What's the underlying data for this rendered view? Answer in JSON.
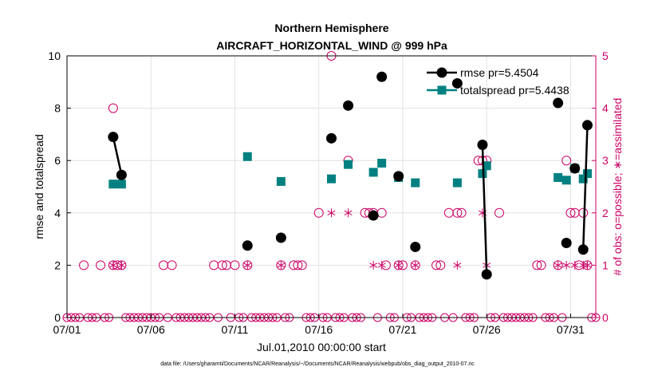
{
  "chart_data": {
    "type": "line",
    "title": "Northern Hemisphere",
    "subtitle": "AIRCRAFT_HORIZONTAL_WIND @ 999 hPa",
    "xlabel": "Jul.01,2010 00:00:00 start",
    "ylabel": "rmse and totalspread",
    "y2label": "# of obs: o=possible; ∗=assimilated",
    "footer": "data file: /Users/gharamti/Documents/NCAR/Reanalysis/~/Documents/NCAR/Reanalysis/webpub/obs_diag_output_2010-07.nc",
    "xlim": [
      0,
      31.5
    ],
    "ylim": [
      0,
      10
    ],
    "y2lim": [
      0,
      5
    ],
    "x_ticks": [
      0,
      5,
      10,
      15,
      20,
      25,
      30
    ],
    "x_tick_labels": [
      "07/01",
      "07/06",
      "07/11",
      "07/16",
      "07/21",
      "07/26",
      "07/31"
    ],
    "y_ticks": [
      0,
      2,
      4,
      6,
      8,
      10
    ],
    "y_tick_labels": [
      "0",
      "2",
      "4",
      "6",
      "8",
      "10"
    ],
    "y2_ticks": [
      0,
      1,
      2,
      3,
      4,
      5
    ],
    "y2_tick_labels": [
      "0",
      "1",
      "2",
      "3",
      "4",
      "5"
    ],
    "legend_position": "top-right",
    "colors": {
      "rmse": "#000000",
      "totalspread": "#008080",
      "obs": "#cc0066",
      "grid": "#dcdcdc"
    },
    "series": [
      {
        "name": "rmse",
        "legend": "rmse pr=5.4504",
        "segments": [
          [
            2.75,
            3.25
          ]
        ],
        "points": [
          [
            2.75,
            6.9
          ],
          [
            3.25,
            5.45
          ],
          [
            10.75,
            2.75
          ],
          [
            12.75,
            3.05
          ],
          [
            15.75,
            6.85
          ],
          [
            16.75,
            8.1
          ],
          [
            18.25,
            3.9
          ],
          [
            18.75,
            9.2
          ],
          [
            19.75,
            5.4
          ],
          [
            20.75,
            2.7
          ],
          [
            23.25,
            8.95
          ],
          [
            24.75,
            6.6
          ],
          [
            25.0,
            1.65
          ],
          [
            29.25,
            8.2
          ],
          [
            29.75,
            2.85
          ],
          [
            30.25,
            5.7
          ],
          [
            30.75,
            2.6
          ],
          [
            31.0,
            7.35
          ]
        ],
        "links": [
          [
            [
              24.75,
              6.6
            ],
            [
              25.0,
              1.65
            ]
          ],
          [
            [
              30.75,
              2.6
            ],
            [
              31.0,
              7.35
            ]
          ],
          [
            [
              18.25,
              3.9
            ],
            [
              18.25,
              3.9
            ]
          ]
        ]
      },
      {
        "name": "totalspread",
        "legend": "totalspread pr=5.4438",
        "points": [
          [
            2.75,
            5.1
          ],
          [
            3.25,
            5.1
          ],
          [
            10.75,
            6.15
          ],
          [
            12.75,
            5.2
          ],
          [
            15.75,
            5.3
          ],
          [
            16.75,
            5.85
          ],
          [
            18.25,
            5.55
          ],
          [
            18.75,
            5.9
          ],
          [
            19.75,
            5.35
          ],
          [
            20.75,
            5.15
          ],
          [
            23.25,
            5.15
          ],
          [
            24.75,
            5.5
          ],
          [
            25.0,
            5.8
          ],
          [
            29.25,
            5.35
          ],
          [
            29.75,
            5.25
          ],
          [
            30.25,
            5.7
          ],
          [
            30.75,
            5.3
          ],
          [
            31.0,
            5.5
          ]
        ],
        "links": [
          [
            [
              24.75,
              5.5
            ],
            [
              25.0,
              5.8
            ]
          ],
          [
            [
              30.75,
              5.3
            ],
            [
              31.0,
              5.5
            ]
          ]
        ]
      },
      {
        "name": "possible obs",
        "axis": "right",
        "points": [
          [
            1.0,
            1
          ],
          [
            2.0,
            1
          ],
          [
            2.75,
            4
          ],
          [
            2.75,
            1
          ],
          [
            3.0,
            1
          ],
          [
            3.25,
            1
          ],
          [
            5.75,
            1
          ],
          [
            6.25,
            1
          ],
          [
            8.75,
            1
          ],
          [
            9.25,
            1
          ],
          [
            9.5,
            1
          ],
          [
            10.0,
            1
          ],
          [
            10.75,
            1
          ],
          [
            12.75,
            1
          ],
          [
            13.5,
            1
          ],
          [
            13.75,
            1
          ],
          [
            14.0,
            1
          ],
          [
            15.0,
            2
          ],
          [
            15.75,
            5
          ],
          [
            16.75,
            3
          ],
          [
            17.75,
            2
          ],
          [
            18.0,
            2
          ],
          [
            18.25,
            2
          ],
          [
            18.75,
            2
          ],
          [
            19.0,
            1
          ],
          [
            19.75,
            1
          ],
          [
            20.0,
            1
          ],
          [
            20.75,
            1
          ],
          [
            22.0,
            1
          ],
          [
            22.25,
            1
          ],
          [
            22.75,
            2
          ],
          [
            23.25,
            2
          ],
          [
            23.5,
            2
          ],
          [
            24.5,
            3
          ],
          [
            24.75,
            3
          ],
          [
            25.0,
            3
          ],
          [
            25.75,
            2
          ],
          [
            28.0,
            1
          ],
          [
            28.25,
            1
          ],
          [
            29.25,
            1
          ],
          [
            29.75,
            3
          ],
          [
            30.0,
            2
          ],
          [
            30.25,
            2
          ],
          [
            30.5,
            1
          ],
          [
            30.75,
            2
          ],
          [
            31.0,
            1
          ]
        ]
      },
      {
        "name": "assimilated obs",
        "axis": "right",
        "points": [
          [
            2.75,
            1
          ],
          [
            3.25,
            1
          ],
          [
            10.75,
            1
          ],
          [
            12.75,
            1
          ],
          [
            15.75,
            2
          ],
          [
            16.75,
            2
          ],
          [
            18.25,
            1
          ],
          [
            18.75,
            1
          ],
          [
            19.75,
            1
          ],
          [
            20.75,
            1
          ],
          [
            23.25,
            1
          ],
          [
            24.75,
            2
          ],
          [
            25.0,
            1
          ],
          [
            29.25,
            1
          ],
          [
            29.75,
            1
          ],
          [
            30.25,
            1
          ],
          [
            30.75,
            1
          ],
          [
            31.0,
            1
          ]
        ]
      }
    ]
  }
}
